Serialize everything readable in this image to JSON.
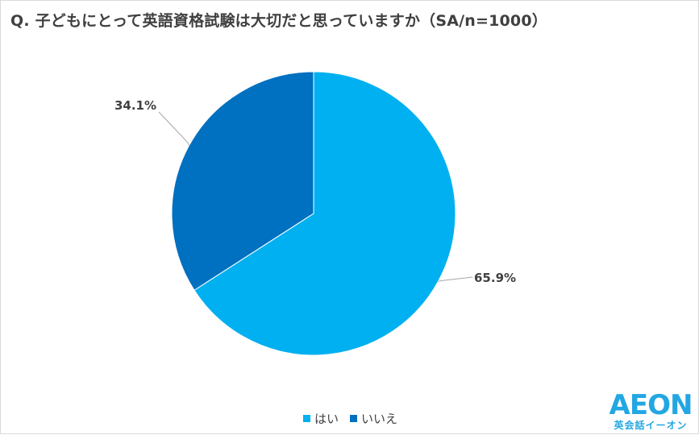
{
  "chart_data": {
    "type": "pie",
    "title": "Q. 子どもにとって英語資格試験は大切だと思っていますか（SA/n=1000）",
    "slices": [
      {
        "label": "はい",
        "value": 65.9,
        "value_label": "65.9%",
        "color": "#00b0f0"
      },
      {
        "label": "いいえ",
        "value": 34.1,
        "value_label": "34.1%",
        "color": "#0070c0"
      }
    ],
    "start_angle": "12 o'clock",
    "direction": "clockwise",
    "legend_position": "bottom",
    "data_labels": "outside with leader lines"
  },
  "logo": {
    "word": "AEON",
    "subtitle": "英会話イーオン",
    "color": "#22a7e2"
  }
}
